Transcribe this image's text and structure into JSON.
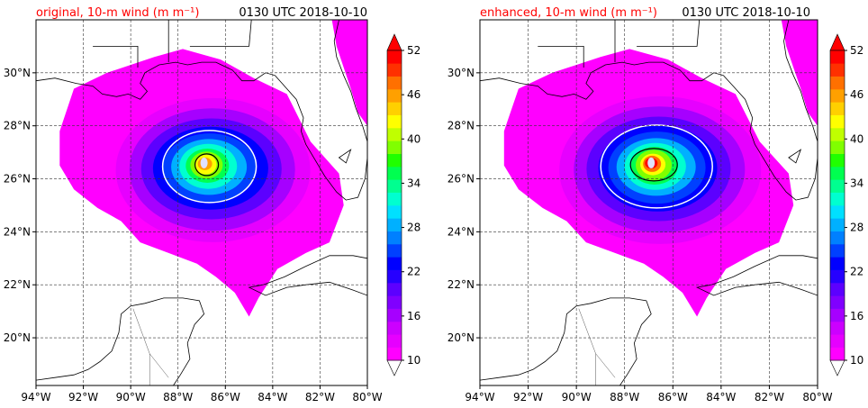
{
  "figure": {
    "panels": [
      {
        "title_left": "original, 10-m wind (m m⁻¹)",
        "title_right": "0130 UTC 2018-10-10",
        "pmax": 46
      },
      {
        "title_left": "enhanced, 10-m wind (m m⁻¹)",
        "title_right": "0130 UTC 2018-10-10",
        "pmax": 52
      }
    ],
    "x_ticks": [
      "94°W",
      "92°W",
      "90°W",
      "88°W",
      "86°W",
      "84°W",
      "82°W",
      "80°W"
    ],
    "y_ticks": [
      "30°N",
      "28°N",
      "26°N",
      "24°N",
      "22°N",
      "20°N"
    ],
    "colorbar_ticks": [
      "52",
      "46",
      "40",
      "34",
      "28",
      "22",
      "16",
      "10"
    ]
  },
  "chart_data": {
    "type": "heatmap",
    "variable": "10-m wind speed",
    "lon_range": [
      -94,
      -80
    ],
    "lat_range": [
      18.2,
      32
    ],
    "storm_center": {
      "lon": -86.9,
      "lat": 26.6
    },
    "colorbar": {
      "min": 10,
      "max": 52,
      "step": 2,
      "extend": "both",
      "ticks": [
        10,
        16,
        22,
        28,
        34,
        40,
        46,
        52
      ],
      "colors": [
        "#ff00ff",
        "#e600ff",
        "#cc00ff",
        "#a600ff",
        "#8000ff",
        "#5c00ff",
        "#2600ff",
        "#0000ff",
        "#0040ff",
        "#0080ff",
        "#00b0ff",
        "#00e0ff",
        "#00ffd0",
        "#00ff90",
        "#00ff50",
        "#20ff00",
        "#80ff00",
        "#c0ff00",
        "#ffff00",
        "#ffd000",
        "#ffa000",
        "#ff7000",
        "#ff3000",
        "#ff0000"
      ]
    },
    "series": [
      {
        "name": "original",
        "max_wind": 46
      },
      {
        "name": "enhanced",
        "max_wind": 52
      }
    ]
  }
}
